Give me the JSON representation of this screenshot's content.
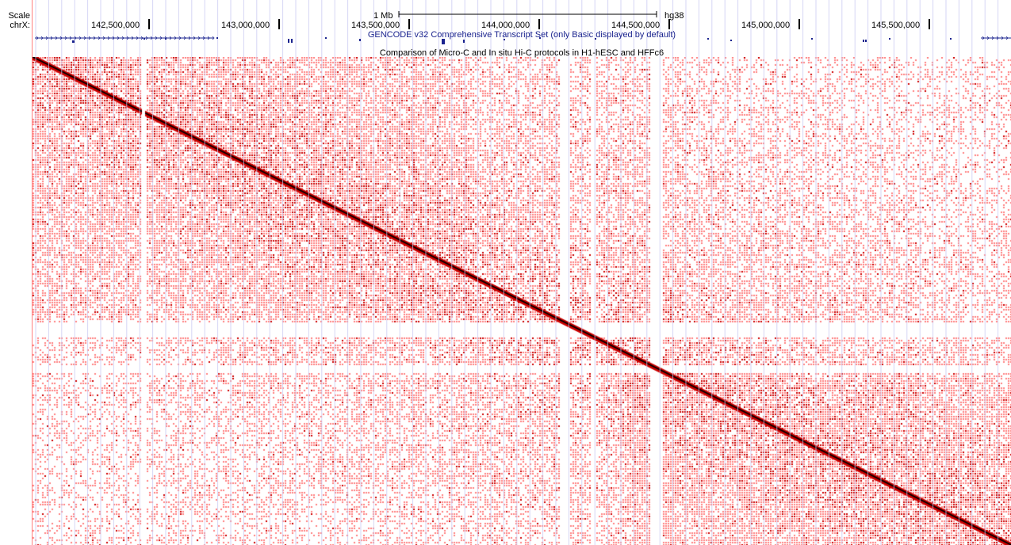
{
  "track_labels": {
    "scale": "Scale",
    "chrom": "chrX:"
  },
  "ruler": {
    "scale_bar_label": "1 Mb",
    "assembly": "hg38",
    "positions": [
      "142,500,000",
      "143,000,000",
      "143,500,000",
      "144,000,000",
      "144,500,000",
      "145,000,000",
      "145,500,000"
    ]
  },
  "gene_track": {
    "label": "GENCODE v32 Comprehensive Transcript Set (only Basic displayed by default)"
  },
  "hic_track": {
    "title": "Comparison of Micro-C and In situ Hi-C protocols in H1-hESC and HFFc6",
    "colors": {
      "contact_low": "#ff8080",
      "contact_high": "#cc0000",
      "diagonal": "#000000",
      "guideline": "#c8c8f0",
      "gene": "#1a238e"
    }
  }
}
